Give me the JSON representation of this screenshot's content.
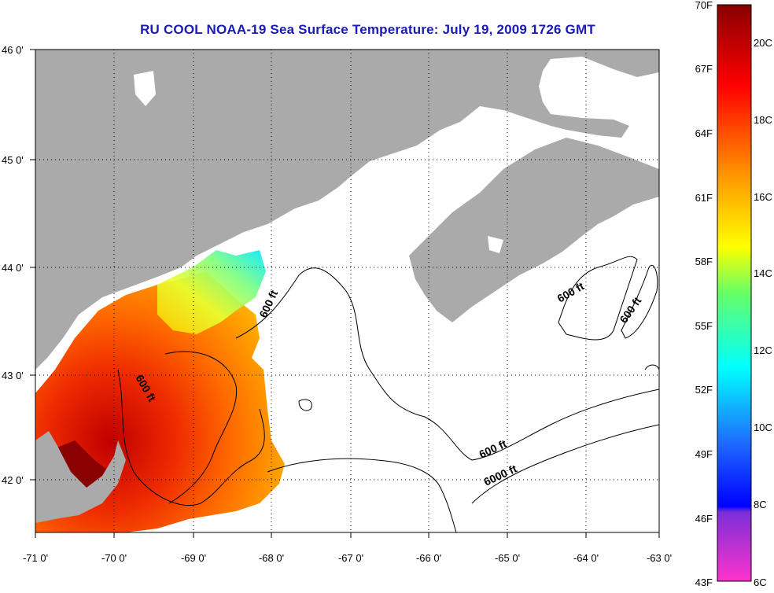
{
  "title": "RU COOL  NOAA-19  Sea Surface Temperature:  July 19, 2009 1726 GMT",
  "lat_labels": [
    "46 0'",
    "45 0'",
    "44 0'",
    "43 0'",
    "42 0'"
  ],
  "lon_labels": [
    "-71 0'",
    "-70 0'",
    "-69 0'",
    "-68 0'",
    "-67 0'",
    "-66 0'",
    "-65 0'",
    "-64 0'",
    "-63 0'"
  ],
  "contours": [
    "600 ft",
    "600 ft",
    "600 ft",
    "600 ft",
    "600 ft",
    "6000 ft"
  ],
  "colorbar": {
    "fahrenheit": [
      "70F",
      "67F",
      "64F",
      "61F",
      "58F",
      "55F",
      "52F",
      "49F",
      "46F",
      "43F"
    ],
    "celsius": [
      "20C",
      "18C",
      "16C",
      "14C",
      "12C",
      "10C",
      "8C",
      "6C"
    ]
  },
  "colors": {
    "land": "#aaaaaa",
    "title": "#1a1ab4"
  }
}
